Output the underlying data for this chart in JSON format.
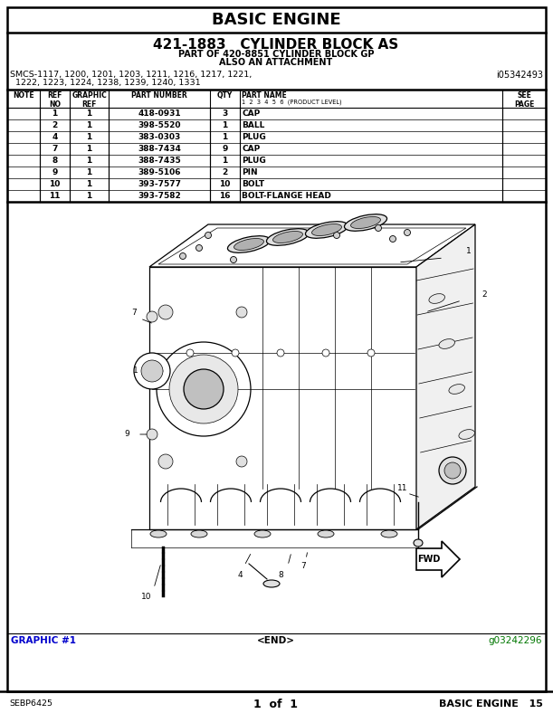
{
  "page_title": "BASIC ENGINE",
  "part_title": "421-1883   CYLINDER BLOCK AS",
  "part_of": "PART OF 420-8851 CYLINDER BLOCK GP",
  "also": "ALSO AN ATTACHMENT",
  "smcs": "SMCS-1117, 1200, 1201, 1203, 1211, 1216, 1217, 1221,",
  "smcs2": "  1222, 1223, 1224, 1238, 1239, 1240, 1331",
  "smcs_code": "i05342493",
  "table_rows": [
    [
      "",
      "1",
      "1",
      "418-0931",
      "3",
      "CAP",
      ""
    ],
    [
      "",
      "2",
      "1",
      "398-5520",
      "1",
      "BALL",
      ""
    ],
    [
      "",
      "4",
      "1",
      "383-0303",
      "1",
      "PLUG",
      ""
    ],
    [
      "",
      "7",
      "1",
      "388-7434",
      "9",
      "CAP",
      ""
    ],
    [
      "",
      "8",
      "1",
      "388-7435",
      "1",
      "PLUG",
      ""
    ],
    [
      "",
      "9",
      "1",
      "389-5106",
      "2",
      "PIN",
      ""
    ],
    [
      "",
      "10",
      "1",
      "393-7577",
      "10",
      "BOLT",
      ""
    ],
    [
      "",
      "11",
      "1",
      "393-7582",
      "16",
      "BOLT-FLANGE HEAD",
      ""
    ]
  ],
  "footer_left": "GRAPHIC #1",
  "footer_center": "<END>",
  "footer_right": "g03242296",
  "bottom_left": "SEBP6425",
  "bottom_center": "1  of  1",
  "bottom_right": "BASIC ENGINE   15",
  "bg_color": "#ffffff",
  "text_color": "#000000",
  "blue_color": "#0000cc",
  "green_color": "#007700"
}
